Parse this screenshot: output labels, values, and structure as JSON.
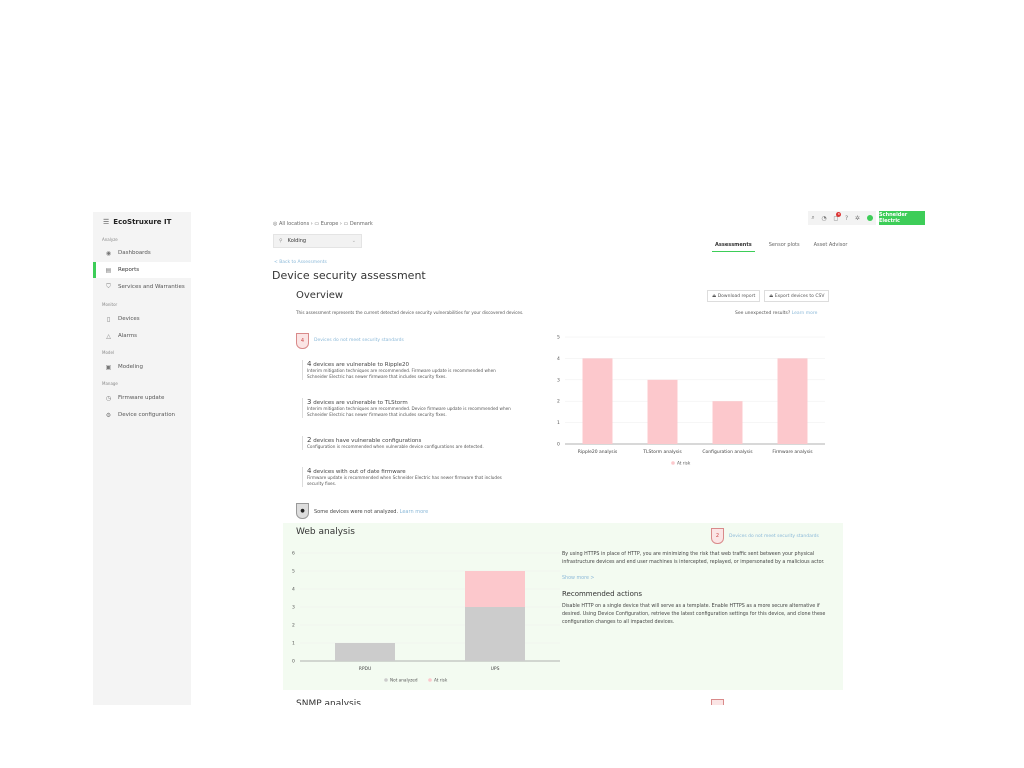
{
  "app": {
    "brand": "EcoStruxure IT",
    "brand_button": "Schneider Electric",
    "notification_count": "8"
  },
  "sidebar": {
    "sections": [
      {
        "label": "Analyze",
        "items": [
          {
            "label": "Dashboards",
            "icon": "eye-icon"
          },
          {
            "label": "Reports",
            "icon": "report-icon",
            "active": true
          },
          {
            "label": "Services and Warranties",
            "icon": "shield-icon"
          }
        ]
      },
      {
        "label": "Monitor",
        "items": [
          {
            "label": "Devices",
            "icon": "device-icon"
          },
          {
            "label": "Alarms",
            "icon": "warning-icon"
          }
        ]
      },
      {
        "label": "Model",
        "items": [
          {
            "label": "Modeling",
            "icon": "modeling-icon"
          }
        ]
      },
      {
        "label": "Manage",
        "items": [
          {
            "label": "Firmware update",
            "icon": "firmware-icon"
          },
          {
            "label": "Device configuration",
            "icon": "config-icon"
          }
        ]
      }
    ]
  },
  "breadcrumb": [
    "All locations",
    "Europe",
    "Denmark"
  ],
  "location_select": "Kolding",
  "tabs": [
    {
      "label": "Assessments",
      "active": true
    },
    {
      "label": "Sensor plots"
    },
    {
      "label": "Asset Advisor"
    }
  ],
  "back_link": "< Back to Assessments",
  "page_title": "Device security assessment",
  "overview": {
    "title": "Overview",
    "download_label": "Download report",
    "export_label": "Export devices to CSV",
    "unexpected": "See unexpected results?",
    "learn_more": "Learn more",
    "description": "This assessment represents the current detected device security vulnerabilities for your discovered devices.",
    "badge_count": "4",
    "badge_text": "Devices do not meet security standards",
    "items": [
      {
        "count": "4",
        "title": "devices are vulnerable to Ripple20",
        "text": "Interim mitigation techniques are recommended. Firmware update is recommended when Schneider Electric has newer firmware that includes security fixes."
      },
      {
        "count": "3",
        "title": "devices are vulnerable to TLStorm",
        "text": "Interim mitigation techniques are recommended. Device firmware update is recommended when Schneider Electric has newer firmware that includes security fixes."
      },
      {
        "count": "2",
        "title": "devices have vulnerable configurations",
        "text": "Configuration is recommended when vulnerable device configurations are detected."
      },
      {
        "count": "4",
        "title": "devices with out of date firmware",
        "text": "Firmware update is recommended when Schneider Electric has newer firmware that includes security fixes."
      }
    ],
    "not_analyzed": "Some devices were not analyzed.",
    "not_analyzed_link": "Learn more"
  },
  "web": {
    "title": "Web analysis",
    "badge_count": "2",
    "badge_text": "Devices do not meet security standards",
    "description": "By using HTTPS in place of HTTP, you are minimizing the risk that web traffic sent between your physical infrastructure devices and end user machines is intercepted, replayed, or impersonated by a malicious actor.",
    "show_more": "Show more >",
    "rec_title": "Recommended actions",
    "rec_text": "Disable HTTP on a single device that will serve as a template. Enable HTTPS as a more secure alternative if desired. Using Device Configuration, retrieve the latest configuration settings for this device, and clone these configuration changes to all impacted devices."
  },
  "next_section": "SNMP analysis",
  "chart_data": [
    {
      "type": "bar",
      "categories": [
        "Ripple20 analysis",
        "TLStorm analysis",
        "Configuration analysis",
        "Firmware analysis"
      ],
      "series": [
        {
          "name": "At risk",
          "values": [
            4,
            3,
            2,
            4
          ],
          "color": "#fcc8cc"
        }
      ],
      "ylim": [
        0,
        5
      ],
      "yticks": [
        0,
        1,
        2,
        3,
        4,
        5
      ],
      "grid": true,
      "legend": "bottom"
    },
    {
      "type": "bar",
      "stacked": true,
      "categories": [
        "RPDU",
        "UPS"
      ],
      "series": [
        {
          "name": "Not analyzed",
          "values": [
            1,
            3
          ],
          "color": "#cccccc"
        },
        {
          "name": "At risk",
          "values": [
            0,
            2
          ],
          "color": "#fcc8cc"
        }
      ],
      "ylim": [
        0,
        6
      ],
      "yticks": [
        0,
        1,
        2,
        3,
        4,
        5,
        6
      ],
      "grid": true,
      "legend": "bottom"
    }
  ]
}
